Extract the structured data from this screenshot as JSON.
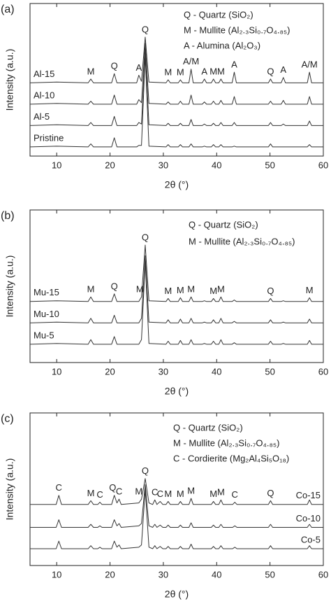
{
  "chart_data": [
    {
      "type": "line",
      "label": "(a)",
      "xlabel": "2θ (°)",
      "ylabel": "Intensity (a.u.)",
      "xlim": [
        5,
        60
      ],
      "xticks": [
        10,
        20,
        30,
        40,
        50,
        60
      ],
      "ylim": [
        0,
        100
      ],
      "label_side": "left",
      "color": "#333333",
      "notes": [
        "Q - Quartz (SiO₂)",
        "M - Mullite (Al₂.₃Si₀.₇O₄.₈₅)",
        "A - Alumina (Al₂O₃)"
      ],
      "annotations": [
        {
          "text": "M",
          "x": 16.4
        },
        {
          "text": "Q",
          "x": 20.8
        },
        {
          "text": "A",
          "x": 25.4
        },
        {
          "text": "Q",
          "x": 26.6
        },
        {
          "text": "M",
          "x": 30.9
        },
        {
          "text": "M",
          "x": 33.2
        },
        {
          "text": "A/M",
          "x": 35.2
        },
        {
          "text": "A",
          "x": 37.7
        },
        {
          "text": "M",
          "x": 39.4
        },
        {
          "text": "M",
          "x": 40.8
        },
        {
          "text": "A",
          "x": 43.3
        },
        {
          "text": "Q",
          "x": 50.1
        },
        {
          "text": "A",
          "x": 52.5
        },
        {
          "text": "A/M",
          "x": 57.4
        }
      ],
      "x": [
        5,
        10,
        15.9,
        16.4,
        16.9,
        20.3,
        20.8,
        21.3,
        25.0,
        25.4,
        25.9,
        26.6,
        27.3,
        30.5,
        30.9,
        31.3,
        32.8,
        33.2,
        33.6,
        34.8,
        35.2,
        35.6,
        37.3,
        37.7,
        38.1,
        39.0,
        39.4,
        39.8,
        40.4,
        40.8,
        41.2,
        42.9,
        43.3,
        43.7,
        49.7,
        50.1,
        50.5,
        52.1,
        52.5,
        52.9,
        57.0,
        57.4,
        57.8,
        60
      ],
      "series": [
        {
          "name": "Pristine",
          "values": [
            6,
            6.5,
            6,
            8,
            6,
            6,
            12,
            6,
            6,
            7,
            7,
            66,
            6.5,
            6,
            7.5,
            6,
            6,
            7.5,
            6,
            6,
            8,
            6,
            6,
            6.5,
            6,
            6,
            7.5,
            6,
            6,
            7.5,
            6,
            6,
            6.5,
            6,
            6,
            8,
            6,
            6,
            6,
            6,
            6,
            7.5,
            6,
            6
          ]
        },
        {
          "name": "Al-5",
          "values": [
            20,
            20.5,
            20,
            22,
            20,
            20,
            26,
            20,
            20,
            22,
            21,
            70,
            20.5,
            20,
            21.5,
            20,
            20,
            21.5,
            20,
            20,
            24,
            20,
            20,
            21,
            20,
            20,
            21.5,
            20,
            20,
            22,
            20,
            20,
            22,
            20,
            20,
            22,
            20,
            20,
            21,
            20,
            20,
            23,
            20,
            20
          ]
        },
        {
          "name": "Al-10",
          "values": [
            34,
            34.5,
            34,
            36,
            34,
            34,
            40,
            34,
            34,
            37,
            35,
            74,
            34.5,
            34,
            35.5,
            34,
            34,
            36,
            34,
            34,
            40,
            34,
            34,
            35.5,
            34,
            34,
            36,
            34,
            34,
            36.5,
            34,
            34,
            39,
            34,
            34,
            36,
            34,
            34,
            36.5,
            34,
            34,
            39,
            34,
            34
          ]
        },
        {
          "name": "Al-15",
          "values": [
            48,
            48.5,
            48,
            50.5,
            48,
            48,
            54,
            48,
            48,
            53,
            49,
            78,
            48.5,
            48,
            50,
            48,
            48,
            50,
            48,
            48,
            57,
            48,
            48,
            50.5,
            48,
            48,
            50.5,
            48,
            48,
            50.5,
            48,
            48,
            55,
            48,
            48,
            50.5,
            48,
            48,
            51.5,
            48,
            48,
            55,
            48,
            48
          ]
        }
      ]
    },
    {
      "type": "line",
      "label": "(b)",
      "xlabel": "2θ (°)",
      "ylabel": "Intensity (a.u.)",
      "xlim": [
        5,
        60
      ],
      "xticks": [
        10,
        20,
        30,
        40,
        50,
        60
      ],
      "ylim": [
        0,
        100
      ],
      "label_side": "left",
      "color": "#333333",
      "notes": [
        "Q - Quartz (SiO₂)",
        "M - Mullite (Al₂.₃Si₀.₇O₄.₈₅)"
      ],
      "annotations": [
        {
          "text": "M",
          "x": 16.4
        },
        {
          "text": "Q",
          "x": 20.8
        },
        {
          "text": "M",
          "x": 25.6
        },
        {
          "text": "Q",
          "x": 26.6
        },
        {
          "text": "M",
          "x": 30.9
        },
        {
          "text": "M",
          "x": 33.2
        },
        {
          "text": "M",
          "x": 35.2
        },
        {
          "text": "M",
          "x": 39.4
        },
        {
          "text": "M",
          "x": 40.8
        },
        {
          "text": "Q",
          "x": 50.1
        },
        {
          "text": "M",
          "x": 57.4
        }
      ],
      "x": [
        5,
        10,
        15.9,
        16.4,
        16.9,
        20.3,
        20.8,
        21.3,
        25.0,
        25.4,
        25.9,
        26.6,
        27.3,
        30.5,
        30.9,
        31.3,
        32.8,
        33.2,
        33.6,
        34.8,
        35.2,
        35.6,
        37.3,
        37.7,
        38.1,
        39.0,
        39.4,
        39.8,
        40.4,
        40.8,
        41.2,
        42.9,
        43.3,
        43.7,
        49.7,
        50.1,
        50.5,
        52.1,
        52.5,
        52.9,
        57.0,
        57.4,
        57.8,
        60
      ],
      "series": [
        {
          "name": "Mu-5",
          "values": [
            12,
            12.5,
            12,
            15,
            12,
            12,
            17,
            12,
            12,
            12,
            15,
            66,
            12.5,
            12,
            14,
            12,
            12,
            14.5,
            12,
            12,
            15,
            12,
            12,
            12.5,
            12,
            12,
            14,
            12,
            12,
            15,
            12,
            12,
            13,
            12,
            12,
            14,
            12,
            12,
            12.5,
            12,
            12,
            14.5,
            12,
            12
          ]
        },
        {
          "name": "Mu-10",
          "values": [
            26,
            26.5,
            26,
            29,
            26,
            26,
            31,
            26,
            26,
            26,
            29,
            70,
            26.5,
            26,
            28,
            26,
            26,
            28.5,
            26,
            26,
            29,
            26,
            26,
            26.5,
            26,
            26,
            28,
            26,
            26,
            29,
            26,
            26,
            27,
            26,
            26,
            28,
            26,
            26,
            26.5,
            26,
            26,
            28.5,
            26,
            26
          ]
        },
        {
          "name": "Mu-15",
          "values": [
            40,
            40.5,
            40,
            43,
            40,
            40,
            45,
            40,
            40,
            40,
            43,
            77,
            40.5,
            40,
            42,
            40,
            40,
            42.5,
            40,
            40,
            43,
            40,
            40,
            40.5,
            40,
            40,
            42,
            40,
            40,
            43,
            40,
            40,
            41,
            40,
            40,
            42,
            40,
            40,
            40.5,
            40,
            40,
            42.5,
            40,
            40
          ]
        }
      ]
    },
    {
      "type": "line",
      "label": "(c)",
      "xlabel": "2θ (°)",
      "ylabel": "Intensity (a.u.)",
      "xlim": [
        5,
        60
      ],
      "xticks": [
        10,
        20,
        30,
        40,
        50,
        60
      ],
      "ylim": [
        0,
        100
      ],
      "label_side": "right",
      "color": "#333333",
      "notes": [
        "Q - Quartz (SiO₂)",
        "M - Mullite (Al₂.₃Si₀.₇O₄.₈₅)",
        "C - Cordierite (Mg₂Al₄Si₅O₁₈)"
      ],
      "annotations": [
        {
          "text": "C",
          "x": 10.4
        },
        {
          "text": "M",
          "x": 16.4
        },
        {
          "text": "C",
          "x": 18.1
        },
        {
          "text": "Q",
          "x": 20.5
        },
        {
          "text": "C",
          "x": 21.7
        },
        {
          "text": "M",
          "x": 25.4
        },
        {
          "text": "Q",
          "x": 26.6
        },
        {
          "text": "C",
          "x": 28.4
        },
        {
          "text": "C",
          "x": 29.4
        },
        {
          "text": "M",
          "x": 30.9
        },
        {
          "text": "M",
          "x": 33.2
        },
        {
          "text": "M",
          "x": 35.2
        },
        {
          "text": "M",
          "x": 39.4
        },
        {
          "text": "M",
          "x": 40.8
        },
        {
          "text": "C",
          "x": 43.4
        },
        {
          "text": "Q",
          "x": 50.1
        }
      ],
      "x": [
        5,
        9.9,
        10.4,
        10.9,
        15.9,
        16.4,
        16.9,
        17.7,
        18.1,
        18.5,
        20.3,
        20.8,
        21.3,
        21.7,
        22.1,
        25.4,
        25.9,
        26.6,
        27.3,
        28.0,
        28.4,
        28.8,
        29.4,
        29.9,
        30.5,
        30.9,
        31.3,
        32.8,
        33.2,
        33.6,
        34.8,
        35.2,
        35.6,
        39.0,
        39.4,
        39.8,
        40.4,
        40.8,
        41.2,
        43.0,
        43.4,
        43.8,
        49.7,
        50.1,
        50.5,
        57.0,
        57.4,
        57.8,
        60
      ],
      "series": [
        {
          "name": "Co-5",
          "values": [
            11,
            11,
            16,
            11,
            11,
            13,
            11,
            11,
            12,
            11,
            11,
            16,
            12,
            13.5,
            11,
            12,
            13.5,
            50,
            12,
            11,
            13,
            11,
            12.5,
            11,
            11,
            12.5,
            11,
            11,
            12.5,
            11,
            11,
            14,
            11,
            11,
            12.5,
            11,
            11,
            13,
            11,
            11,
            12,
            11,
            11,
            13,
            11,
            11,
            13,
            11,
            11
          ]
        },
        {
          "name": "Co-10",
          "values": [
            25,
            25,
            30,
            25,
            25,
            27,
            25,
            25,
            26,
            25,
            25,
            30,
            26,
            27.5,
            25,
            26,
            27.5,
            53,
            26,
            25,
            27,
            25,
            26.5,
            25,
            25,
            26.5,
            25,
            25,
            26.5,
            25,
            25,
            28,
            25,
            25,
            26.5,
            25,
            25,
            27,
            25,
            25,
            26,
            25,
            25,
            27,
            25,
            25,
            27,
            25,
            25
          ]
        },
        {
          "name": "Co-15",
          "values": [
            40,
            40,
            46,
            40,
            40,
            42.5,
            40,
            40,
            41.5,
            40,
            40,
            46,
            41,
            43.5,
            40,
            41,
            43.5,
            57,
            41,
            40,
            43,
            40,
            42,
            40,
            40,
            42,
            40,
            40,
            42,
            40,
            40,
            44,
            40,
            40,
            42,
            40,
            40,
            43,
            40,
            40,
            41.5,
            40,
            40,
            42.5,
            40,
            40,
            43,
            40,
            40
          ]
        }
      ]
    }
  ]
}
